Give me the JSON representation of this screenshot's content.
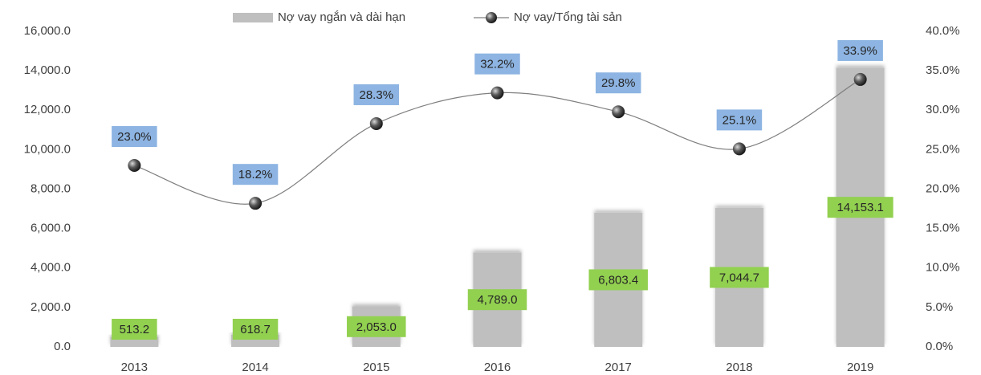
{
  "chart_data": {
    "type": "bar",
    "categories": [
      "2013",
      "2014",
      "2015",
      "2016",
      "2017",
      "2018",
      "2019"
    ],
    "series": [
      {
        "name": "Nợ vay ngắn và dài hạn",
        "type": "bar",
        "color": "#bfbfbf",
        "label_color": "#92d050",
        "values": [
          513.2,
          618.7,
          2053.0,
          4789.0,
          6803.4,
          7044.7,
          14153.1
        ],
        "value_labels": [
          "513.2",
          "618.7",
          "2,053.0",
          "4,789.0",
          "6,803.4",
          "7,044.7",
          "14,153.1"
        ]
      },
      {
        "name": "Nợ vay/Tổng tài sản",
        "type": "line",
        "axis": "y2",
        "color": "#7f7f7f",
        "label_color": "#8db4e2",
        "values": [
          23.0,
          18.2,
          28.3,
          32.2,
          29.8,
          25.1,
          33.9
        ],
        "value_labels": [
          "23.0%",
          "18.2%",
          "28.3%",
          "32.2%",
          "29.8%",
          "25.1%",
          "33.9%"
        ]
      }
    ],
    "ylim": [
      0,
      16000
    ],
    "yticks": [
      {
        "value": 0,
        "label": "0.0"
      },
      {
        "value": 2000,
        "label": "2,000.0"
      },
      {
        "value": 4000,
        "label": "4,000.0"
      },
      {
        "value": 6000,
        "label": "6,000.0"
      },
      {
        "value": 8000,
        "label": "8,000.0"
      },
      {
        "value": 10000,
        "label": "10,000.0"
      },
      {
        "value": 12000,
        "label": "12,000.0"
      },
      {
        "value": 14000,
        "label": "14,000.0"
      },
      {
        "value": 16000,
        "label": "16,000.0"
      }
    ],
    "y2lim": [
      0,
      40
    ],
    "y2ticks": [
      {
        "value": 0,
        "label": "0.0%"
      },
      {
        "value": 5,
        "label": "5.0%"
      },
      {
        "value": 10,
        "label": "10.0%"
      },
      {
        "value": 15,
        "label": "15.0%"
      },
      {
        "value": 20,
        "label": "20.0%"
      },
      {
        "value": 25,
        "label": "25.0%"
      },
      {
        "value": 30,
        "label": "30.0%"
      },
      {
        "value": 35,
        "label": "35.0%"
      },
      {
        "value": 40,
        "label": "40.0%"
      }
    ],
    "grid": false,
    "legend": "top"
  }
}
